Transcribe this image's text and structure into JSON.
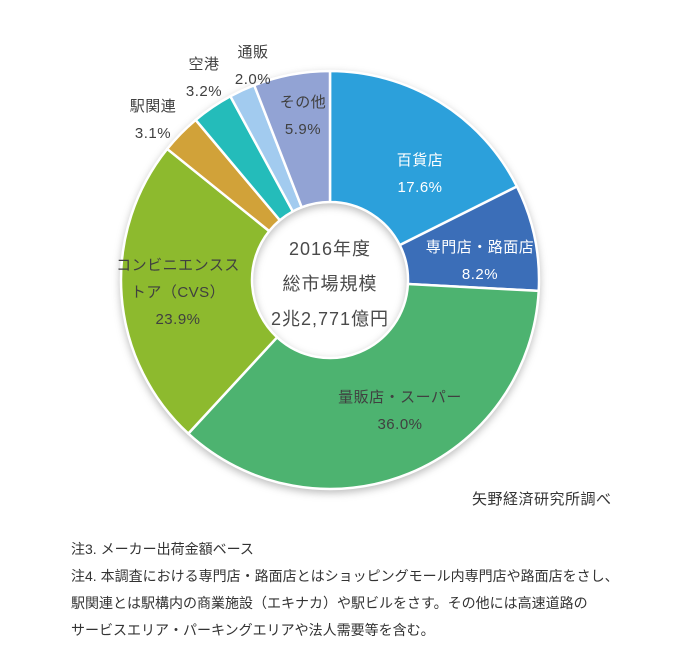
{
  "chart_data": {
    "type": "pie",
    "subtype": "donut",
    "start_angle_deg": 0,
    "direction": "clockwise",
    "donut_hole_ratio": 0.37,
    "slices": [
      {
        "id": "department-store",
        "name": "百貨店",
        "value": 17.6,
        "pct_label": "17.6%",
        "color": "#2CA0DB",
        "label_color": "#ffffff"
      },
      {
        "id": "specialty-street-store",
        "name": "専門店・路面店",
        "value": 8.2,
        "pct_label": "8.2%",
        "color": "#3B6EB8",
        "label_color": "#ffffff"
      },
      {
        "id": "mass-retailer-supermarket",
        "name": "量販店・スーパー",
        "value": 36.0,
        "pct_label": "36.0%",
        "color": "#4DB370",
        "label_color": "#404040"
      },
      {
        "id": "convenience-store",
        "name": "コンビニエンスストア（CVS）",
        "value": 23.9,
        "pct_label": "23.9%",
        "color": "#8DBA2E",
        "label_color": "#404040"
      },
      {
        "id": "station-related",
        "name": "駅関連",
        "value": 3.1,
        "pct_label": "3.1%",
        "color": "#D1A239",
        "label_color": "#404040"
      },
      {
        "id": "airport",
        "name": "空港",
        "value": 3.2,
        "pct_label": "3.2%",
        "color": "#24BCBA",
        "label_color": "#404040"
      },
      {
        "id": "mail-order",
        "name": "通販",
        "value": 2.0,
        "pct_label": "2.0%",
        "color": "#A2CBEF",
        "label_color": "#404040"
      },
      {
        "id": "others",
        "name": "その他",
        "value": 5.9,
        "pct_label": "5.9%",
        "color": "#92A3D4",
        "label_color": "#404040"
      }
    ],
    "center_label": {
      "line1": "2016年度",
      "line2": "総市場規模",
      "line3": "2兆2,771億円"
    }
  },
  "source": "矢野経済研究所調べ",
  "notes": {
    "lines": [
      "注3. メーカー出荷金額ベース",
      "注4. 本調査における専門店・路面店とはショッピングモール内専門店や路面店をさし、",
      "駅関連とは駅構内の商業施設（エキナカ）や駅ビルをさす。その他には高速道路の",
      "サービスエリア・パーキングエリアや法人需要等を含む。"
    ]
  }
}
